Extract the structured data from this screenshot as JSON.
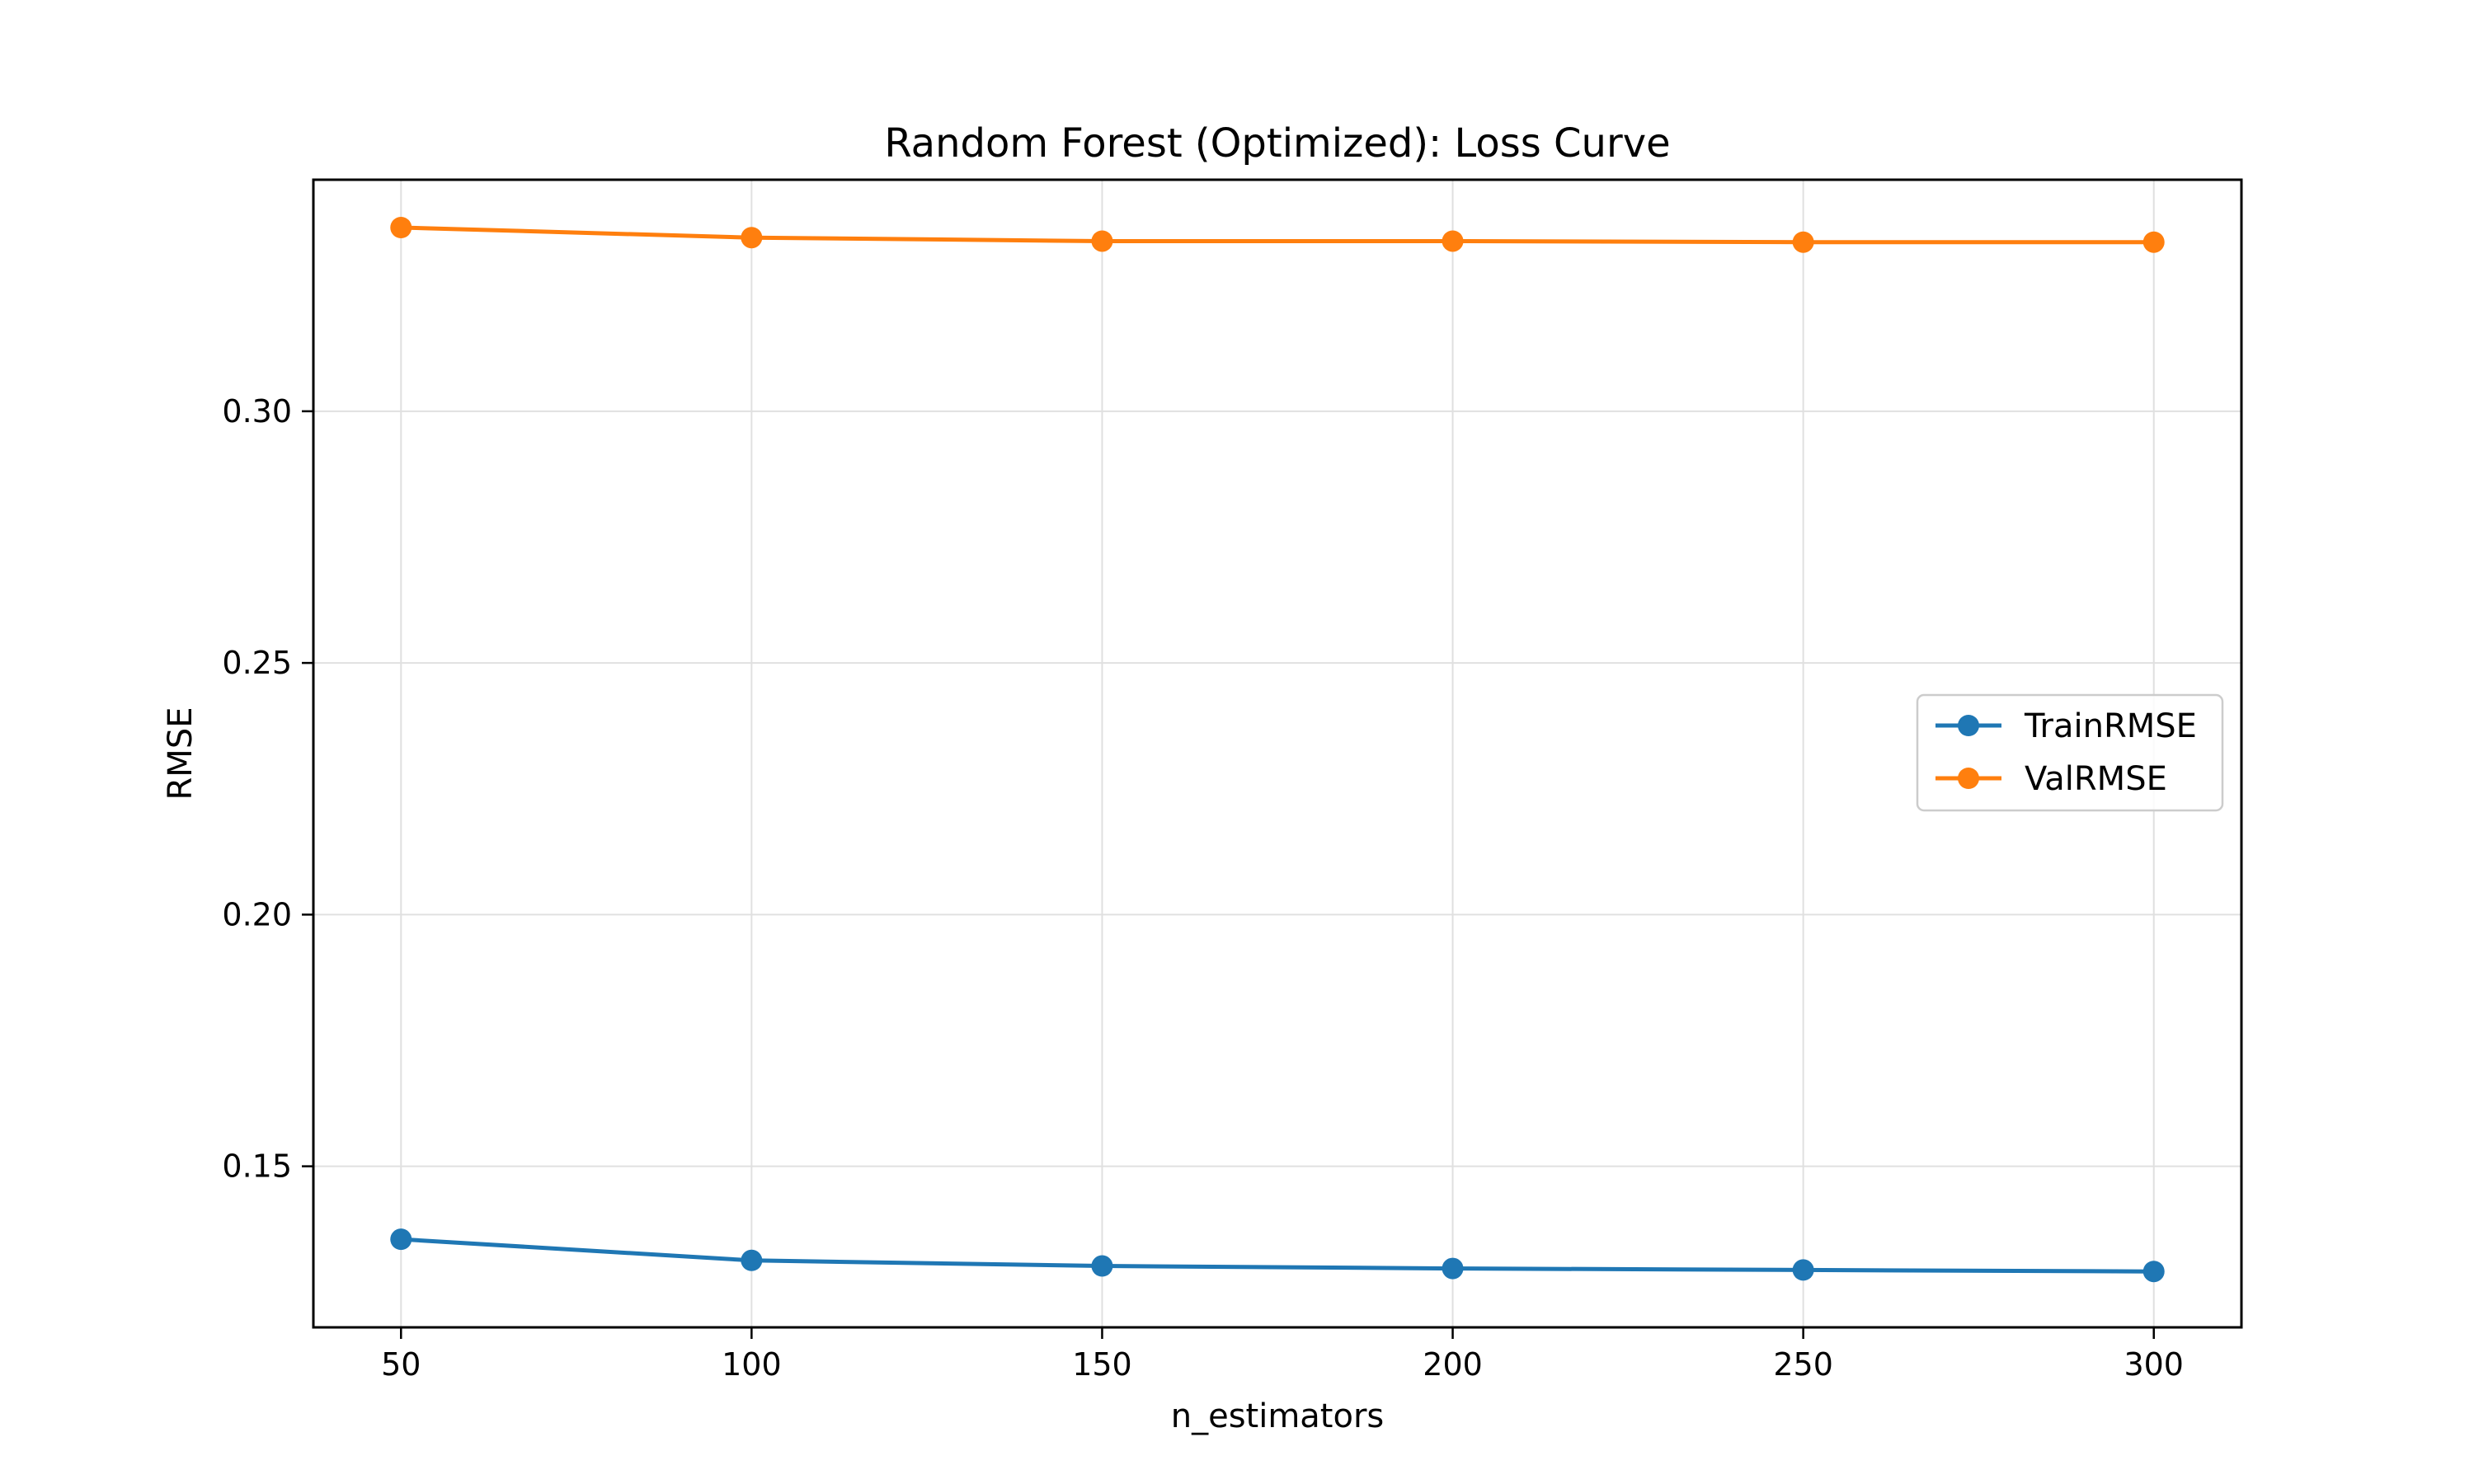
{
  "chart_data": {
    "type": "line",
    "title": "Random Forest (Optimized): Loss Curve",
    "xlabel": "n_estimators",
    "ylabel": "RMSE",
    "x": [
      50,
      100,
      150,
      200,
      250,
      300
    ],
    "xticks": [
      "50",
      "100",
      "150",
      "200",
      "250",
      "300"
    ],
    "yticks": [
      "0.15",
      "0.20",
      "0.25",
      "0.30"
    ],
    "xlim": [
      37.5,
      312.5
    ],
    "ylim": [
      0.118,
      0.346
    ],
    "grid": true,
    "legend_position": "center-right",
    "series": [
      {
        "name": "TrainRMSE",
        "color": "#1f77b4",
        "values": [
          0.1355,
          0.1313,
          0.1302,
          0.1297,
          0.1294,
          0.1291
        ]
      },
      {
        "name": "ValRMSE",
        "color": "#ff7f0e",
        "values": [
          0.3365,
          0.3345,
          0.3338,
          0.3338,
          0.3336,
          0.3336
        ]
      }
    ]
  }
}
